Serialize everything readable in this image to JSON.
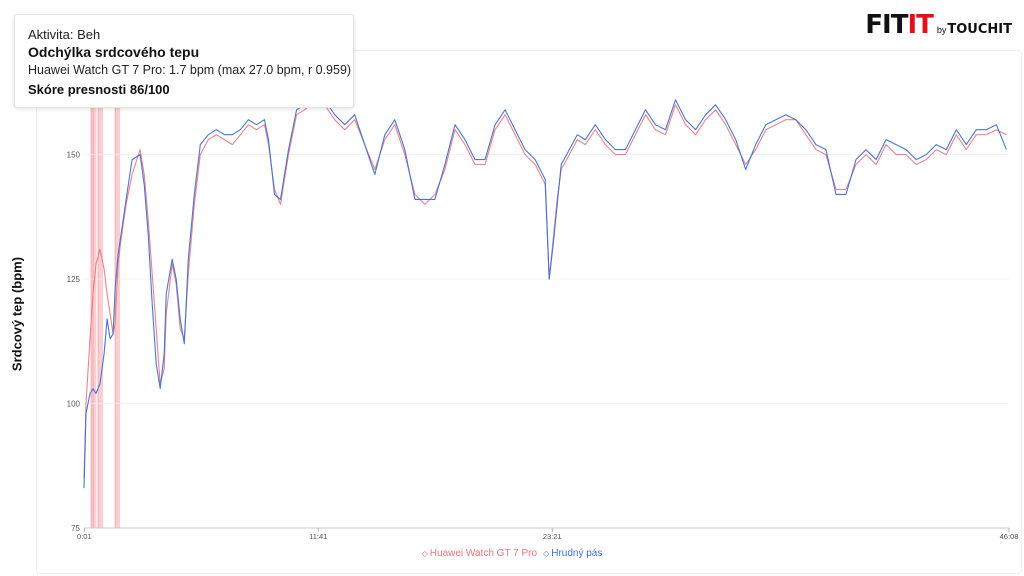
{
  "brand": {
    "main": "FIT",
    "accent": "IT",
    "by": "by",
    "sub": "TOUCHIT"
  },
  "info": {
    "activity": "Aktivita: Beh",
    "title": "Odchýlka srdcového tepu",
    "detail": "Huawei Watch GT 7 Pro: 1.7 bpm  (max 27.0 bpm, r 0.959)",
    "score": "Skóre presnosti 86/100"
  },
  "colors": {
    "watch": "#e8777d",
    "chest": "#3e6fd3",
    "band": "#f7c8cb",
    "grid": "#ececec",
    "brand_accent": "#e1101c"
  },
  "chart_data": {
    "type": "line",
    "xlabel": "",
    "ylabel": "Srdcový tep (bpm)",
    "xlim": [
      0,
      46.13
    ],
    "ylim": [
      75,
      170
    ],
    "y_ticks": [
      75,
      100,
      125,
      150
    ],
    "x_ticks": [
      {
        "value": 0.017,
        "label": "0:01"
      },
      {
        "value": 11.68,
        "label": "11:41"
      },
      {
        "value": 23.35,
        "label": "23:21"
      },
      {
        "value": 46.13,
        "label": "46:08"
      }
    ],
    "deviation_bands": [
      [
        0.35,
        0.45
      ],
      [
        0.45,
        0.62
      ],
      [
        0.7,
        0.95
      ],
      [
        1.55,
        1.8
      ]
    ],
    "series": [
      {
        "name": "Huawei Watch GT 7 Pro",
        "x": [
          0,
          0.1,
          0.3,
          0.45,
          0.6,
          0.8,
          1.0,
          1.15,
          1.3,
          1.45,
          1.55,
          1.7,
          1.85,
          2.1,
          2.4,
          2.8,
          3.0,
          3.2,
          3.4,
          3.6,
          3.8,
          4.0,
          4.1,
          4.4,
          4.6,
          4.8,
          5.0,
          5.2,
          5.5,
          5.8,
          6.2,
          6.6,
          7.0,
          7.4,
          7.8,
          8.2,
          8.6,
          9.0,
          9.2,
          9.5,
          9.8,
          10.2,
          10.6,
          11.0,
          11.6,
          12.0,
          12.5,
          13.0,
          13.5,
          14.0,
          14.5,
          15.0,
          15.5,
          16.0,
          16.5,
          17.0,
          17.5,
          18.0,
          18.5,
          19.0,
          19.5,
          20.0,
          20.5,
          21.0,
          21.5,
          22.0,
          22.5,
          23.0,
          23.2,
          23.4,
          23.6,
          23.8,
          24.2,
          24.6,
          25.0,
          25.5,
          26.0,
          26.5,
          27.0,
          27.5,
          28.0,
          28.5,
          29.0,
          29.5,
          30.0,
          30.5,
          31.0,
          31.5,
          32.0,
          32.5,
          33.0,
          33.5,
          34.0,
          34.5,
          35.0,
          35.5,
          36.0,
          36.5,
          37.0,
          37.5,
          38.0,
          38.5,
          39.0,
          39.5,
          40.0,
          40.5,
          41.0,
          41.5,
          42.0,
          42.5,
          43.0,
          43.5,
          44.0,
          44.5,
          45.0,
          45.5,
          46.0
        ],
        "y": [
          85,
          100,
          113,
          122,
          128,
          131,
          127,
          122,
          118,
          114,
          116,
          128,
          133,
          140,
          146,
          151,
          146,
          137,
          126,
          115,
          104,
          107,
          118,
          128,
          124,
          115,
          113,
          126,
          140,
          150,
          153,
          154,
          153,
          152,
          154,
          156,
          155,
          156,
          152,
          143,
          140,
          150,
          158,
          159,
          161,
          160,
          157,
          155,
          157,
          152,
          147,
          153,
          156,
          150,
          142,
          140,
          142,
          147,
          155,
          152,
          148,
          148,
          155,
          158,
          154,
          150,
          148,
          144,
          125,
          133,
          141,
          147,
          150,
          153,
          152,
          155,
          152,
          150,
          150,
          154,
          158,
          155,
          154,
          160,
          156,
          154,
          157,
          159,
          156,
          152,
          148,
          151,
          155,
          156,
          157,
          157,
          154,
          151,
          150,
          143,
          143,
          148,
          150,
          148,
          152,
          150,
          150,
          148,
          149,
          151,
          150,
          154,
          151,
          154,
          154,
          155,
          154
        ],
        "color": "#e8777d"
      },
      {
        "name": "Hrudný pás",
        "x": [
          0,
          0.1,
          0.3,
          0.45,
          0.6,
          0.8,
          1.0,
          1.15,
          1.3,
          1.45,
          1.55,
          1.7,
          1.85,
          2.1,
          2.4,
          2.8,
          3.0,
          3.2,
          3.4,
          3.6,
          3.8,
          4.0,
          4.1,
          4.4,
          4.6,
          4.8,
          5.0,
          5.2,
          5.5,
          5.8,
          6.2,
          6.6,
          7.0,
          7.4,
          7.8,
          8.2,
          8.6,
          9.0,
          9.2,
          9.5,
          9.8,
          10.2,
          10.6,
          11.0,
          11.6,
          12.0,
          12.5,
          13.0,
          13.5,
          14.0,
          14.5,
          15.0,
          15.5,
          16.0,
          16.5,
          17.0,
          17.5,
          18.0,
          18.5,
          19.0,
          19.5,
          20.0,
          20.5,
          21.0,
          21.5,
          22.0,
          22.5,
          23.0,
          23.2,
          23.4,
          23.6,
          23.8,
          24.2,
          24.6,
          25.0,
          25.5,
          26.0,
          26.5,
          27.0,
          27.5,
          28.0,
          28.5,
          29.0,
          29.5,
          30.0,
          30.5,
          31.0,
          31.5,
          32.0,
          32.5,
          33.0,
          33.5,
          34.0,
          34.5,
          35.0,
          35.5,
          36.0,
          36.5,
          37.0,
          37.5,
          38.0,
          38.5,
          39.0,
          39.5,
          40.0,
          40.5,
          41.0,
          41.5,
          42.0,
          42.5,
          43.0,
          43.5,
          44.0,
          44.5,
          45.0,
          45.5,
          46.0
        ],
        "y": [
          83,
          98,
          102,
          103,
          102,
          104,
          110,
          117,
          113,
          114,
          123,
          130,
          134,
          141,
          149,
          150,
          144,
          134,
          120,
          108,
          103,
          110,
          122,
          129,
          125,
          117,
          112,
          129,
          142,
          152,
          154,
          155,
          154,
          154,
          155,
          157,
          156,
          157,
          153,
          142,
          141,
          151,
          159,
          160,
          162,
          161,
          158,
          156,
          158,
          152,
          146,
          154,
          157,
          151,
          141,
          141,
          141,
          148,
          156,
          153,
          149,
          149,
          156,
          159,
          155,
          151,
          149,
          145,
          125,
          132,
          140,
          148,
          151,
          154,
          153,
          156,
          153,
          151,
          151,
          155,
          159,
          156,
          155,
          161,
          157,
          155,
          158,
          160,
          157,
          153,
          147,
          152,
          156,
          157,
          158,
          157,
          155,
          152,
          151,
          142,
          142,
          149,
          151,
          149,
          153,
          152,
          151,
          149,
          150,
          152,
          151,
          155,
          152,
          155,
          155,
          156,
          151
        ],
        "color": "#3e6fd3"
      }
    ],
    "legend": {
      "position": "bottom-center"
    }
  }
}
